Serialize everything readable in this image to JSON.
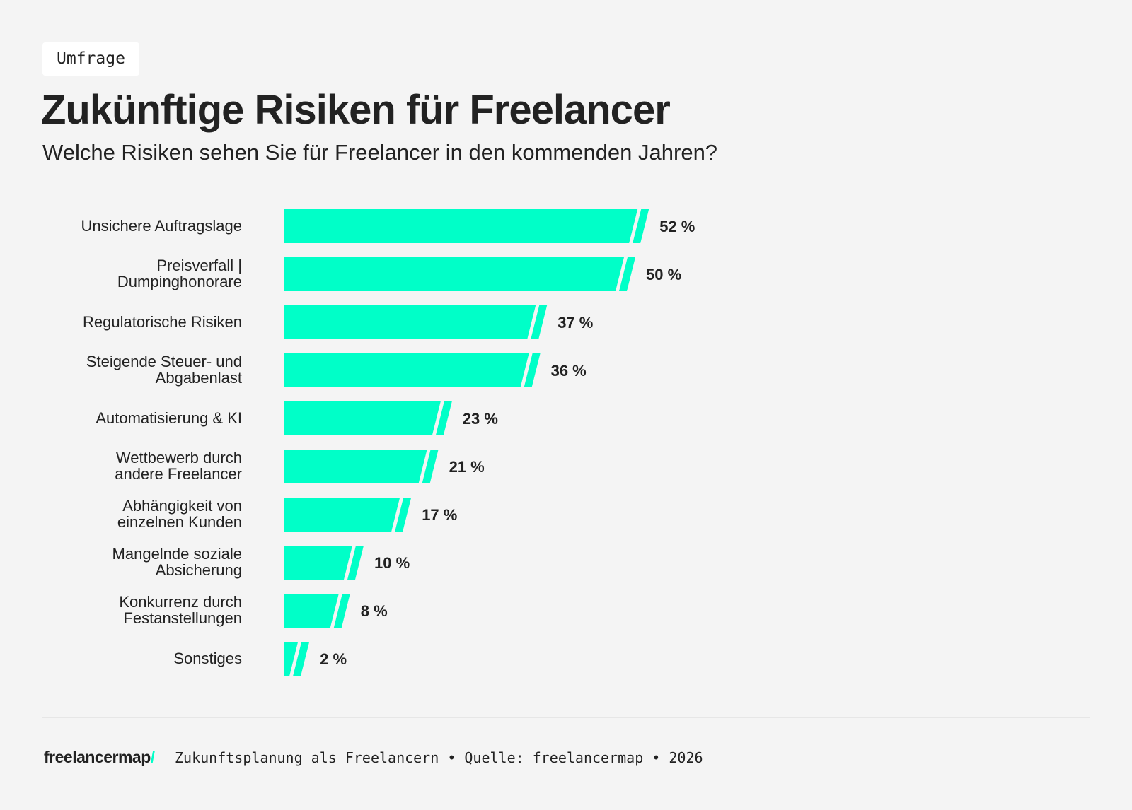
{
  "tag": "Umfrage",
  "title": "Zukünftige Risiken für Freelancer",
  "subtitle": "Welche Risiken sehen Sie für Freelancer in den kommenden Jahren?",
  "colors": {
    "bar": "#00ffc8",
    "background": "#f4f4f4",
    "text": "#222222"
  },
  "chart_data": {
    "type": "bar",
    "orientation": "horizontal",
    "title": "Zukünftige Risiken für Freelancer",
    "unit": "%",
    "categories": [
      "Unsichere Auftragslage",
      "Preisverfall | Dumpinghonorare",
      "Regulatorische Risiken",
      "Steigende Steuer- und Abgabenlast",
      "Automatisierung & KI",
      "Wettbewerb durch andere Freelancer",
      "Abhängigkeit von einzelnen Kunden",
      "Mangelnde soziale Absicherung",
      "Konkurrenz durch Festanstellungen",
      "Sonstiges"
    ],
    "label_lines": [
      [
        "Unsichere Auftragslage"
      ],
      [
        "Preisverfall |",
        "Dumpinghonorare"
      ],
      [
        "Regulatorische Risiken"
      ],
      [
        "Steigende Steuer- und",
        "Abgabenlast"
      ],
      [
        "Automatisierung & KI"
      ],
      [
        "Wettbewerb durch",
        "andere Freelancer"
      ],
      [
        "Abhängigkeit von",
        "einzelnen Kunden"
      ],
      [
        "Mangelnde soziale",
        "Absicherung"
      ],
      [
        "Konkurrenz durch",
        "Festanstellungen"
      ],
      [
        "Sonstiges"
      ]
    ],
    "values": [
      52,
      50,
      37,
      36,
      23,
      21,
      17,
      10,
      8,
      2
    ],
    "value_labels": [
      "52 %",
      "50 %",
      "37 %",
      "36 %",
      "23 %",
      "21 %",
      "17 %",
      "10 %",
      "8 %",
      "2 %"
    ],
    "grid": false,
    "legend": "none"
  },
  "footer": {
    "logo": "freelancermap",
    "logo_slash": "/",
    "text": "Zukunftsplanung als Freelancern • Quelle: freelancermap • 2026"
  }
}
